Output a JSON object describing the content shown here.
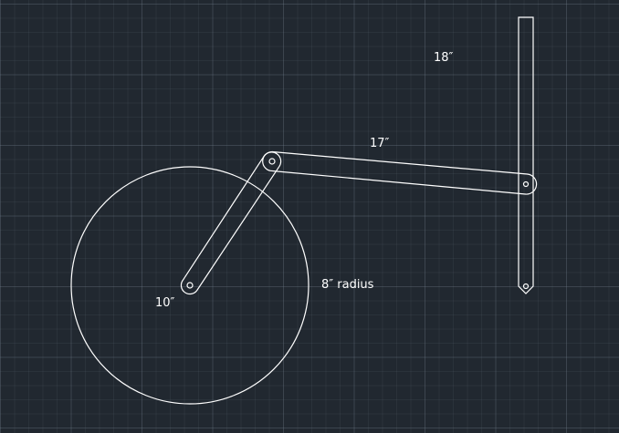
{
  "drawing": {
    "labels": {
      "rocker_length": "18″",
      "coupler_length": "17″",
      "crank_length": "10″",
      "wheel_radius": "8″ radius"
    },
    "colors": {
      "background": "#212830",
      "stroke": "#ffffff",
      "label": "#ffffff"
    }
  }
}
